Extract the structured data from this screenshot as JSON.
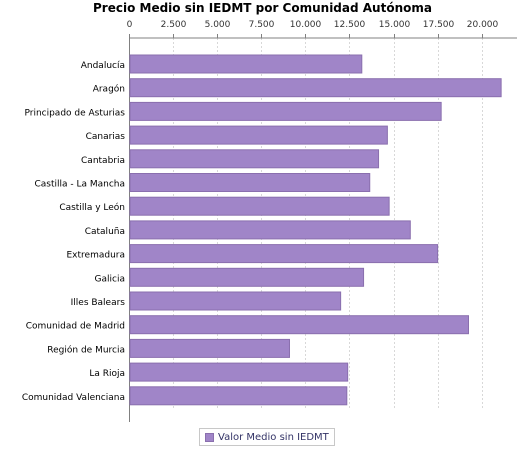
{
  "chart_data": {
    "type": "bar",
    "orientation": "horizontal",
    "title": "Precio Medio sin IEDMT por Comunidad Autónoma",
    "categories": [
      "Andalucía",
      "Aragón",
      "Principado de Asturias",
      "Canarias",
      "Cantabria",
      "Castilla - La Mancha",
      "Castilla y León",
      "Cataluña",
      "Extremadura",
      "Galicia",
      "Illes Balears",
      "Comunidad de Madrid",
      "Región de Murcia",
      "La Rioja",
      "Comunidad Valenciana"
    ],
    "series": [
      {
        "name": "Valor Medio sin IEDMT",
        "values": [
          13200,
          21100,
          17700,
          14650,
          14150,
          13650,
          14750,
          15950,
          17500,
          13300,
          12000,
          19250,
          9100,
          12400,
          12350
        ],
        "color": "#a085c8"
      }
    ],
    "xlim": [
      0,
      22000
    ],
    "xticks": [
      "0",
      "2.500",
      "5.000",
      "7.500",
      "10.000",
      "12.500",
      "15.000",
      "17.500",
      "20.000"
    ],
    "xtick_values": [
      0,
      2500,
      5000,
      7500,
      10000,
      12500,
      15000,
      17500,
      20000
    ],
    "axis_position": "top",
    "grid": true,
    "legend_position": "bottom"
  }
}
